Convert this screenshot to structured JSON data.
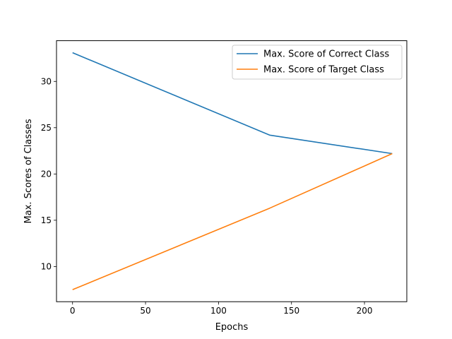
{
  "chart_data": {
    "type": "line",
    "title": "",
    "xlabel": "Epochs",
    "ylabel": "Max. Scores of Classes",
    "xlim": [
      -11,
      229
    ],
    "ylim": [
      6.2,
      34.4
    ],
    "xticks": [
      0,
      50,
      100,
      150,
      200
    ],
    "yticks": [
      10,
      15,
      20,
      25,
      30
    ],
    "grid": false,
    "legend_position": "top-right",
    "series": [
      {
        "name": "Max. Score of Correct Class",
        "color": "#1f77b4",
        "x": [
          0,
          135,
          219
        ],
        "y": [
          33.1,
          24.2,
          22.2
        ]
      },
      {
        "name": "Max. Score of Target Class",
        "color": "#ff7f0e",
        "x": [
          0,
          135,
          219
        ],
        "y": [
          7.5,
          16.3,
          22.2
        ]
      }
    ]
  }
}
